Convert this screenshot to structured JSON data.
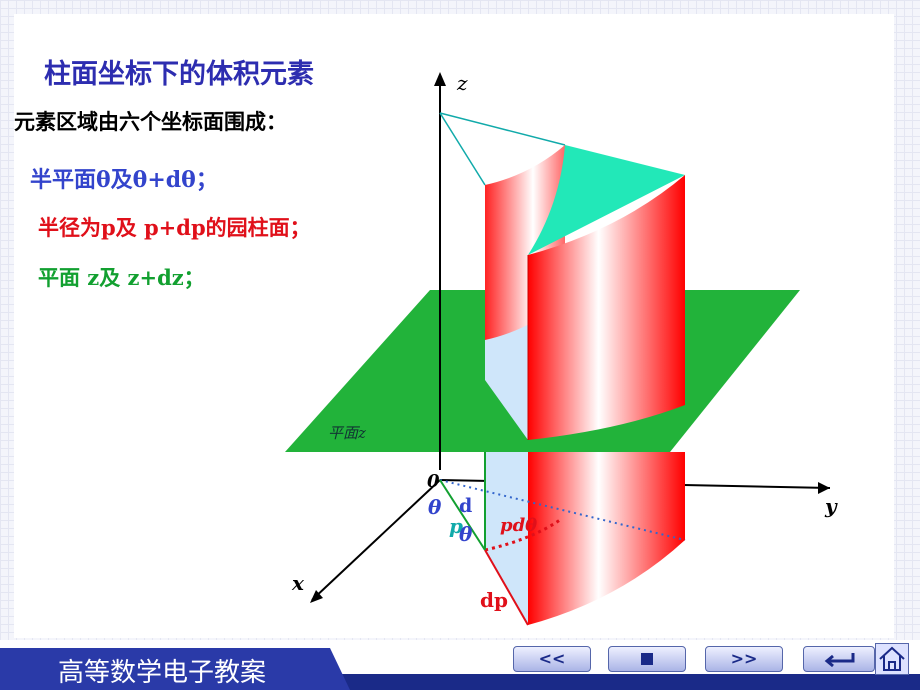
{
  "title": "柱面坐标下的体积元素",
  "intro": "元素区域由六个坐标面围成：",
  "items": [
    "半平面θ及θ+dθ；",
    "半径为p及 p+dp的园柱面；",
    "平面 z及 z+dz；"
  ],
  "diagram": {
    "labels": {
      "z": "z",
      "y": "y",
      "x": "x",
      "origin": "0",
      "plane": "平面z",
      "theta": "θ",
      "d": "d",
      "p": "p",
      "theta2": "θ",
      "arc": "pdθ",
      "radial": "dp"
    }
  },
  "footer": {
    "title": "高等数学电子教案",
    "prev": "<<",
    "next": ">>"
  }
}
